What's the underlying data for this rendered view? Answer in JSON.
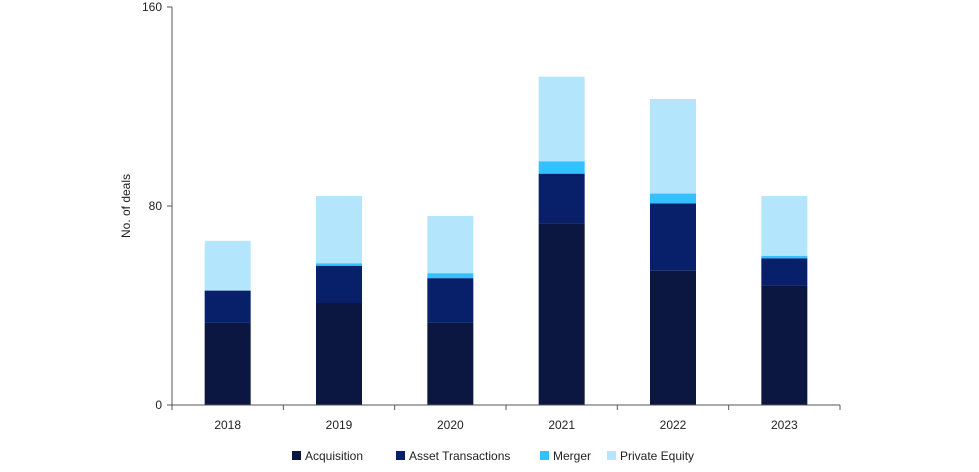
{
  "chart_data": {
    "type": "bar",
    "stacked": true,
    "title": "",
    "xlabel": "",
    "ylabel": "No. of deals",
    "ylim": [
      0,
      160
    ],
    "yticks": [
      0,
      80,
      160
    ],
    "grid": false,
    "legend_position": "bottom",
    "categories": [
      "2018",
      "2019",
      "2020",
      "2021",
      "2022",
      "2023"
    ],
    "series": [
      {
        "name": "Acquisition",
        "color": "#0b1740",
        "values": [
          33,
          41,
          33,
          73,
          54,
          48
        ]
      },
      {
        "name": "Asset Transactions",
        "color": "#08206a",
        "values": [
          13,
          15,
          18,
          20,
          27,
          11
        ]
      },
      {
        "name": "Merger",
        "color": "#33c1ff",
        "values": [
          0,
          1,
          2,
          5,
          4,
          1
        ]
      },
      {
        "name": "Private Equity",
        "color": "#b3e6fd",
        "values": [
          20,
          27,
          23,
          34,
          38,
          24
        ]
      }
    ]
  }
}
